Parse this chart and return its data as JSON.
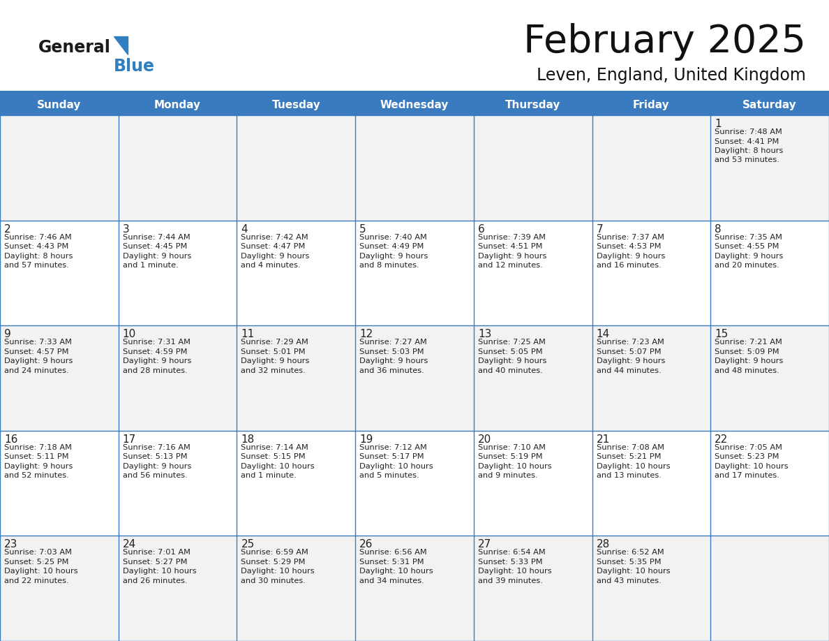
{
  "title": "February 2025",
  "subtitle": "Leven, England, United Kingdom",
  "header_bg": "#3a7abf",
  "header_text": "#ffffff",
  "cell_bg_even": "#f2f2f2",
  "cell_bg_odd": "#ffffff",
  "border_color": "#3a7abf",
  "text_color": "#222222",
  "day_headers": [
    "Sunday",
    "Monday",
    "Tuesday",
    "Wednesday",
    "Thursday",
    "Friday",
    "Saturday"
  ],
  "logo_general_color": "#1a1a1a",
  "logo_blue_color": "#2f7fc1",
  "logo_triangle_color": "#2f7fc1",
  "days": [
    {
      "date": 1,
      "col": 6,
      "row": 0,
      "lines": [
        "Sunrise: 7:48 AM",
        "Sunset: 4:41 PM",
        "Daylight: 8 hours",
        "and 53 minutes."
      ]
    },
    {
      "date": 2,
      "col": 0,
      "row": 1,
      "lines": [
        "Sunrise: 7:46 AM",
        "Sunset: 4:43 PM",
        "Daylight: 8 hours",
        "and 57 minutes."
      ]
    },
    {
      "date": 3,
      "col": 1,
      "row": 1,
      "lines": [
        "Sunrise: 7:44 AM",
        "Sunset: 4:45 PM",
        "Daylight: 9 hours",
        "and 1 minute."
      ]
    },
    {
      "date": 4,
      "col": 2,
      "row": 1,
      "lines": [
        "Sunrise: 7:42 AM",
        "Sunset: 4:47 PM",
        "Daylight: 9 hours",
        "and 4 minutes."
      ]
    },
    {
      "date": 5,
      "col": 3,
      "row": 1,
      "lines": [
        "Sunrise: 7:40 AM",
        "Sunset: 4:49 PM",
        "Daylight: 9 hours",
        "and 8 minutes."
      ]
    },
    {
      "date": 6,
      "col": 4,
      "row": 1,
      "lines": [
        "Sunrise: 7:39 AM",
        "Sunset: 4:51 PM",
        "Daylight: 9 hours",
        "and 12 minutes."
      ]
    },
    {
      "date": 7,
      "col": 5,
      "row": 1,
      "lines": [
        "Sunrise: 7:37 AM",
        "Sunset: 4:53 PM",
        "Daylight: 9 hours",
        "and 16 minutes."
      ]
    },
    {
      "date": 8,
      "col": 6,
      "row": 1,
      "lines": [
        "Sunrise: 7:35 AM",
        "Sunset: 4:55 PM",
        "Daylight: 9 hours",
        "and 20 minutes."
      ]
    },
    {
      "date": 9,
      "col": 0,
      "row": 2,
      "lines": [
        "Sunrise: 7:33 AM",
        "Sunset: 4:57 PM",
        "Daylight: 9 hours",
        "and 24 minutes."
      ]
    },
    {
      "date": 10,
      "col": 1,
      "row": 2,
      "lines": [
        "Sunrise: 7:31 AM",
        "Sunset: 4:59 PM",
        "Daylight: 9 hours",
        "and 28 minutes."
      ]
    },
    {
      "date": 11,
      "col": 2,
      "row": 2,
      "lines": [
        "Sunrise: 7:29 AM",
        "Sunset: 5:01 PM",
        "Daylight: 9 hours",
        "and 32 minutes."
      ]
    },
    {
      "date": 12,
      "col": 3,
      "row": 2,
      "lines": [
        "Sunrise: 7:27 AM",
        "Sunset: 5:03 PM",
        "Daylight: 9 hours",
        "and 36 minutes."
      ]
    },
    {
      "date": 13,
      "col": 4,
      "row": 2,
      "lines": [
        "Sunrise: 7:25 AM",
        "Sunset: 5:05 PM",
        "Daylight: 9 hours",
        "and 40 minutes."
      ]
    },
    {
      "date": 14,
      "col": 5,
      "row": 2,
      "lines": [
        "Sunrise: 7:23 AM",
        "Sunset: 5:07 PM",
        "Daylight: 9 hours",
        "and 44 minutes."
      ]
    },
    {
      "date": 15,
      "col": 6,
      "row": 2,
      "lines": [
        "Sunrise: 7:21 AM",
        "Sunset: 5:09 PM",
        "Daylight: 9 hours",
        "and 48 minutes."
      ]
    },
    {
      "date": 16,
      "col": 0,
      "row": 3,
      "lines": [
        "Sunrise: 7:18 AM",
        "Sunset: 5:11 PM",
        "Daylight: 9 hours",
        "and 52 minutes."
      ]
    },
    {
      "date": 17,
      "col": 1,
      "row": 3,
      "lines": [
        "Sunrise: 7:16 AM",
        "Sunset: 5:13 PM",
        "Daylight: 9 hours",
        "and 56 minutes."
      ]
    },
    {
      "date": 18,
      "col": 2,
      "row": 3,
      "lines": [
        "Sunrise: 7:14 AM",
        "Sunset: 5:15 PM",
        "Daylight: 10 hours",
        "and 1 minute."
      ]
    },
    {
      "date": 19,
      "col": 3,
      "row": 3,
      "lines": [
        "Sunrise: 7:12 AM",
        "Sunset: 5:17 PM",
        "Daylight: 10 hours",
        "and 5 minutes."
      ]
    },
    {
      "date": 20,
      "col": 4,
      "row": 3,
      "lines": [
        "Sunrise: 7:10 AM",
        "Sunset: 5:19 PM",
        "Daylight: 10 hours",
        "and 9 minutes."
      ]
    },
    {
      "date": 21,
      "col": 5,
      "row": 3,
      "lines": [
        "Sunrise: 7:08 AM",
        "Sunset: 5:21 PM",
        "Daylight: 10 hours",
        "and 13 minutes."
      ]
    },
    {
      "date": 22,
      "col": 6,
      "row": 3,
      "lines": [
        "Sunrise: 7:05 AM",
        "Sunset: 5:23 PM",
        "Daylight: 10 hours",
        "and 17 minutes."
      ]
    },
    {
      "date": 23,
      "col": 0,
      "row": 4,
      "lines": [
        "Sunrise: 7:03 AM",
        "Sunset: 5:25 PM",
        "Daylight: 10 hours",
        "and 22 minutes."
      ]
    },
    {
      "date": 24,
      "col": 1,
      "row": 4,
      "lines": [
        "Sunrise: 7:01 AM",
        "Sunset: 5:27 PM",
        "Daylight: 10 hours",
        "and 26 minutes."
      ]
    },
    {
      "date": 25,
      "col": 2,
      "row": 4,
      "lines": [
        "Sunrise: 6:59 AM",
        "Sunset: 5:29 PM",
        "Daylight: 10 hours",
        "and 30 minutes."
      ]
    },
    {
      "date": 26,
      "col": 3,
      "row": 4,
      "lines": [
        "Sunrise: 6:56 AM",
        "Sunset: 5:31 PM",
        "Daylight: 10 hours",
        "and 34 minutes."
      ]
    },
    {
      "date": 27,
      "col": 4,
      "row": 4,
      "lines": [
        "Sunrise: 6:54 AM",
        "Sunset: 5:33 PM",
        "Daylight: 10 hours",
        "and 39 minutes."
      ]
    },
    {
      "date": 28,
      "col": 5,
      "row": 4,
      "lines": [
        "Sunrise: 6:52 AM",
        "Sunset: 5:35 PM",
        "Daylight: 10 hours",
        "and 43 minutes."
      ]
    }
  ]
}
